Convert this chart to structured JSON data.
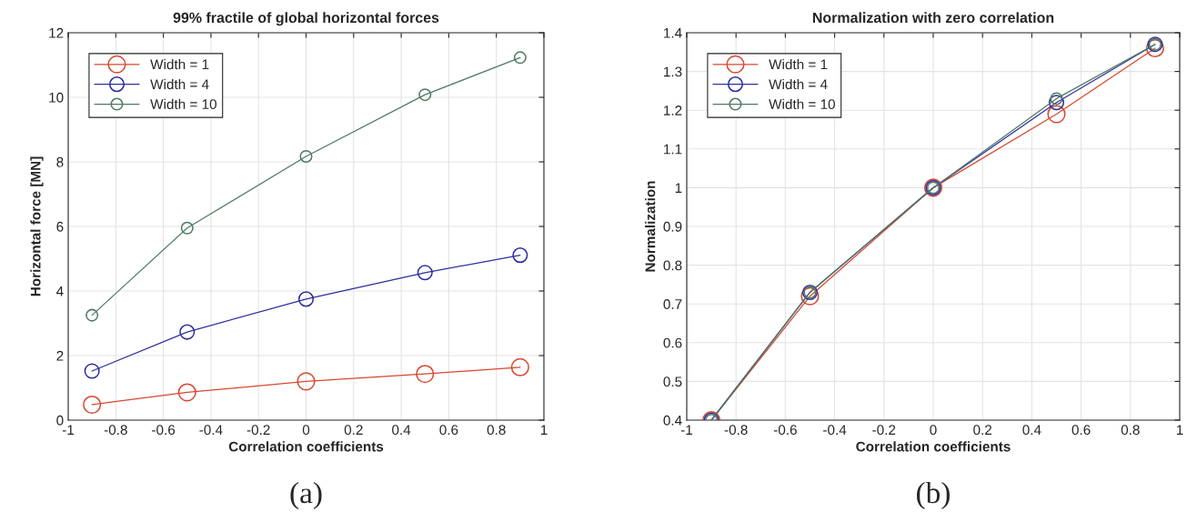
{
  "chart_data": [
    {
      "type": "line",
      "title": "99% fractile of global horizontal forces",
      "xlabel": "Correlation coefficients",
      "ylabel": "Horizontal force [MN]",
      "x": [
        -0.9,
        -0.5,
        0,
        0.5,
        0.9
      ],
      "series": [
        {
          "name": "Width = 1",
          "color": "#d9472f",
          "values": [
            0.48,
            0.86,
            1.2,
            1.43,
            1.64
          ]
        },
        {
          "name": "Width = 4",
          "color": "#2e2e9e",
          "values": [
            1.52,
            2.73,
            3.75,
            4.57,
            5.11
          ]
        },
        {
          "name": "Width = 10",
          "color": "#4f7a62",
          "values": [
            3.25,
            5.95,
            8.17,
            10.08,
            11.23
          ]
        }
      ],
      "xlim": [
        -1,
        1
      ],
      "xticks": [
        -1,
        -0.8,
        -0.6,
        -0.4,
        -0.2,
        0,
        0.2,
        0.4,
        0.6,
        0.8,
        1
      ],
      "ylim": [
        0,
        12
      ],
      "yticks": [
        0,
        2,
        4,
        6,
        8,
        10,
        12
      ],
      "grid": true,
      "legend": "top left",
      "marker": "circle",
      "line_style": "solid",
      "annotations": [
        "(a)"
      ]
    },
    {
      "type": "line",
      "title": "Normalization with zero correlation",
      "xlabel": "Correlation coefficients",
      "ylabel": "Normalization",
      "x": [
        -0.9,
        -0.5,
        0,
        0.5,
        0.9
      ],
      "series": [
        {
          "name": "Width = 1",
          "color": "#d9472f",
          "values": [
            0.4,
            0.72,
            1,
            1.19,
            1.36
          ]
        },
        {
          "name": "Width = 4",
          "color": "#2e2e9e",
          "values": [
            0.4,
            0.73,
            1,
            1.22,
            1.37
          ]
        },
        {
          "name": "Width = 10",
          "color": "#4f7a62",
          "values": [
            0.4,
            0.73,
            1,
            1.23,
            1.37
          ]
        }
      ],
      "xlim": [
        -1,
        1
      ],
      "xticks": [
        -1,
        -0.8,
        -0.6,
        -0.4,
        -0.2,
        0,
        0.2,
        0.4,
        0.6,
        0.8,
        1
      ],
      "ylim": [
        0.4,
        1.4
      ],
      "yticks": [
        0.4,
        0.5,
        0.6,
        0.7,
        0.8,
        0.9,
        1,
        1.1,
        1.2,
        1.3,
        1.4
      ],
      "grid": true,
      "legend": "top left",
      "marker": "circle",
      "line_style": "solid",
      "annotations": [
        "(b)"
      ]
    }
  ]
}
